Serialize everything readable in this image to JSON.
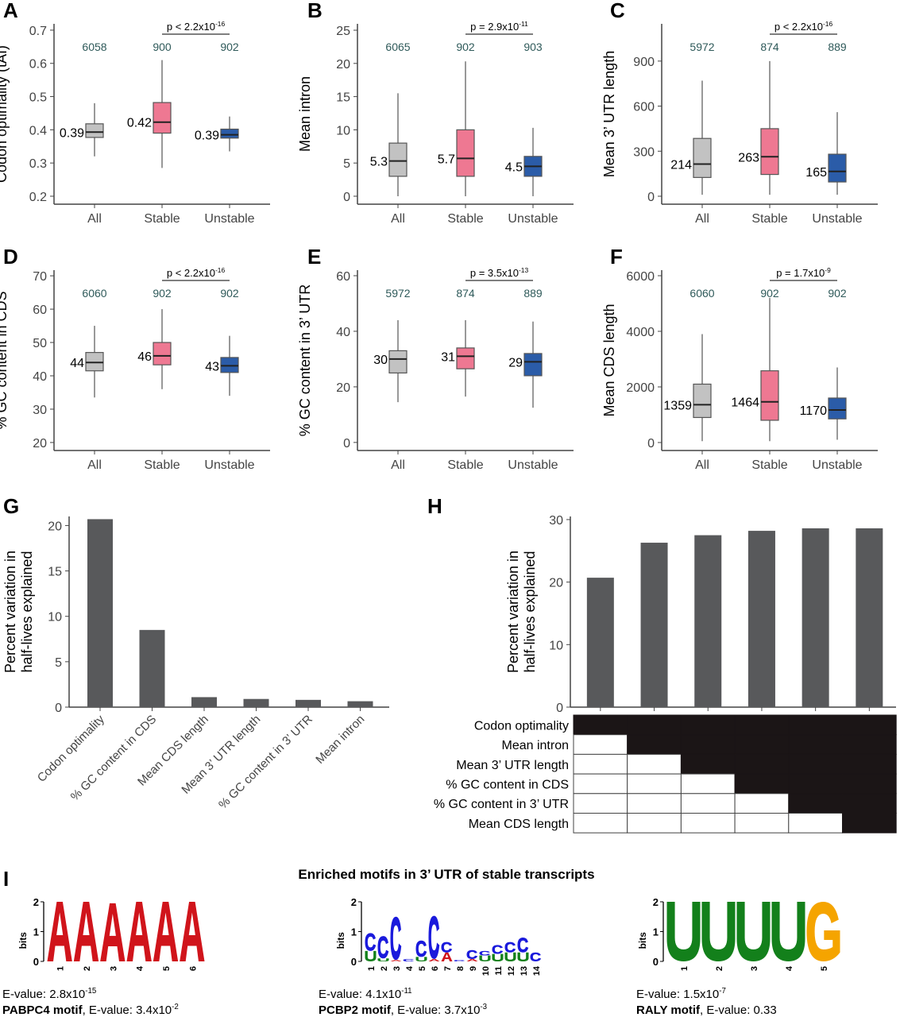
{
  "colors": {
    "all": "#c2c2c2",
    "stable": "#ee7892",
    "unstable": "#2b5ca8",
    "bar": "#58595b",
    "n_label": "#2f5a5a",
    "logo_A": "#d0141b",
    "logo_C": "#1a1adc",
    "logo_G": "#f5a400",
    "logo_U": "#13801b"
  },
  "chart_data": [
    {
      "id": "A",
      "type": "box",
      "ylabel": "Codon optimality (tAI)",
      "categories": [
        "All",
        "Stable",
        "Unstable"
      ],
      "ylim": [
        0.176,
        0.719
      ],
      "ticks": [
        0.2,
        0.3,
        0.4,
        0.5,
        0.6,
        0.7
      ],
      "n": [
        "6058",
        "900",
        "902"
      ],
      "pvalue": {
        "base": "p < 2.2x10",
        "exp": "-16"
      },
      "median_labels": [
        "0.39",
        "0.42",
        "0.39"
      ],
      "boxes": [
        {
          "lo": 0.32,
          "q1": 0.377,
          "med": 0.393,
          "q3": 0.418,
          "hi": 0.48
        },
        {
          "lo": 0.285,
          "q1": 0.39,
          "med": 0.423,
          "q3": 0.482,
          "hi": 0.61
        },
        {
          "lo": 0.335,
          "q1": 0.375,
          "med": 0.385,
          "q3": 0.402,
          "hi": 0.44
        }
      ]
    },
    {
      "id": "B",
      "type": "box",
      "ylabel": "Mean intron",
      "categories": [
        "All",
        "Stable",
        "Unstable"
      ],
      "ylim": [
        -1.2,
        25.96
      ],
      "ticks": [
        0,
        5,
        10,
        15,
        20,
        25
      ],
      "n": [
        "6065",
        "902",
        "903"
      ],
      "pvalue": {
        "base": "p = 2.9x10",
        "exp": "-11"
      },
      "median_labels": [
        "5.3",
        "5.7",
        "4.5"
      ],
      "boxes": [
        {
          "lo": 0,
          "q1": 3,
          "med": 5.3,
          "q3": 8,
          "hi": 15.5
        },
        {
          "lo": 0,
          "q1": 3,
          "med": 5.7,
          "q3": 10,
          "hi": 20.3
        },
        {
          "lo": 0,
          "q1": 3,
          "med": 4.5,
          "q3": 6,
          "hi": 10.3
        }
      ]
    },
    {
      "id": "C",
      "type": "box",
      "ylabel": "Mean 3’ UTR length",
      "categories": [
        "All",
        "Stable",
        "Unstable"
      ],
      "ylim": [
        -53,
        1148
      ],
      "ticks": [
        0,
        300,
        600,
        900
      ],
      "n": [
        "5972",
        "874",
        "889"
      ],
      "pvalue": {
        "base": "p < 2.2x10",
        "exp": "-16"
      },
      "median_labels": [
        "214",
        "263",
        "165"
      ],
      "boxes": [
        {
          "lo": 10,
          "q1": 125,
          "med": 214,
          "q3": 385,
          "hi": 770
        },
        {
          "lo": 10,
          "q1": 145,
          "med": 263,
          "q3": 450,
          "hi": 900
        },
        {
          "lo": 10,
          "q1": 95,
          "med": 165,
          "q3": 280,
          "hi": 560
        }
      ]
    },
    {
      "id": "D",
      "type": "box",
      "ylabel": "% GC content in CDS",
      "categories": [
        "All",
        "Stable",
        "Unstable"
      ],
      "ylim": [
        17.6,
        71.7
      ],
      "ticks": [
        20,
        30,
        40,
        50,
        60,
        70
      ],
      "n": [
        "6060",
        "902",
        "902"
      ],
      "pvalue": {
        "base": "p < 2.2x10",
        "exp": "-16"
      },
      "median_labels": [
        "44",
        "46",
        "43"
      ],
      "boxes": [
        {
          "lo": 33.5,
          "q1": 41.5,
          "med": 44,
          "q3": 47,
          "hi": 55
        },
        {
          "lo": 36,
          "q1": 43.3,
          "med": 46,
          "q3": 50,
          "hi": 60
        },
        {
          "lo": 34,
          "q1": 41,
          "med": 43,
          "q3": 45.5,
          "hi": 52
        }
      ]
    },
    {
      "id": "E",
      "type": "box",
      "ylabel": "% GC content in 3’ UTR",
      "categories": [
        "All",
        "Stable",
        "Unstable"
      ],
      "ylim": [
        -2.9,
        62
      ],
      "ticks": [
        0,
        20,
        40,
        60
      ],
      "n": [
        "5972",
        "874",
        "889"
      ],
      "pvalue": {
        "base": "p = 3.5x10",
        "exp": "-13"
      },
      "median_labels": [
        "30",
        "31",
        "29"
      ],
      "boxes": [
        {
          "lo": 14.5,
          "q1": 25,
          "med": 30,
          "q3": 33,
          "hi": 44
        },
        {
          "lo": 16.5,
          "q1": 26.5,
          "med": 31,
          "q3": 34,
          "hi": 44
        },
        {
          "lo": 12.5,
          "q1": 24,
          "med": 29,
          "q3": 32,
          "hi": 43.5
        }
      ]
    },
    {
      "id": "F",
      "type": "box",
      "ylabel": "Mean CDS length",
      "categories": [
        "All",
        "Stable",
        "Unstable"
      ],
      "ylim": [
        -287,
        6200
      ],
      "ticks": [
        0,
        2000,
        4000,
        6000
      ],
      "n": [
        "6060",
        "902",
        "902"
      ],
      "pvalue": {
        "base": "p = 1.7x10",
        "exp": "-9"
      },
      "median_labels": [
        "1359",
        "1464",
        "1170"
      ],
      "boxes": [
        {
          "lo": 50,
          "q1": 900,
          "med": 1359,
          "q3": 2100,
          "hi": 3900
        },
        {
          "lo": 50,
          "q1": 800,
          "med": 1464,
          "q3": 2580,
          "hi": 5200
        },
        {
          "lo": 100,
          "q1": 850,
          "med": 1170,
          "q3": 1600,
          "hi": 2700
        }
      ]
    },
    {
      "id": "G",
      "type": "bar",
      "ylabel": [
        "Percent variation in",
        "half-lives explained"
      ],
      "ylim": [
        0,
        21
      ],
      "ticks": [
        0,
        5,
        10,
        15,
        20
      ],
      "categories": [
        "Codon optimality",
        "% GC content in CDS",
        "Mean CDS length",
        "Mean 3’ UTR length",
        "% GC content in 3’ UTR",
        "Mean intron"
      ],
      "values": [
        20.7,
        8.5,
        1.1,
        0.9,
        0.8,
        0.65
      ]
    },
    {
      "id": "H",
      "type": "bar",
      "ylabel": [
        "Percent variation in",
        "half-lives explained"
      ],
      "ylim": [
        0,
        30
      ],
      "ticks": [
        0,
        10,
        20,
        30
      ],
      "values": [
        20.7,
        26.3,
        27.5,
        28.2,
        28.6,
        28.6
      ],
      "matrix_rows": [
        "Codon optimality",
        "Mean intron",
        "Mean 3’ UTR length",
        "% GC content in CDS",
        "% GC content in 3’ UTR",
        "Mean CDS length"
      ],
      "matrix": [
        [
          1,
          1,
          1,
          1,
          1,
          1
        ],
        [
          0,
          1,
          1,
          1,
          1,
          1
        ],
        [
          0,
          0,
          1,
          1,
          1,
          1
        ],
        [
          0,
          0,
          0,
          1,
          1,
          1
        ],
        [
          0,
          0,
          0,
          0,
          1,
          1
        ],
        [
          0,
          0,
          0,
          0,
          0,
          1
        ]
      ]
    }
  ],
  "panel_I": {
    "title": "Enriched motifs in 3’ UTR of stable transcripts",
    "y_axis_label": "bits",
    "y_ticks": [
      "0",
      "1",
      "2"
    ],
    "logos": [
      {
        "positions": [
          [
            [
              "A",
              2
            ]
          ],
          [
            [
              "A",
              2
            ]
          ],
          [
            [
              "A",
              1.95
            ]
          ],
          [
            [
              "A",
              2
            ]
          ],
          [
            [
              "A",
              2
            ]
          ],
          [
            [
              "A",
              2
            ]
          ]
        ],
        "evalue": {
          "base": "E-value: 2.8x10",
          "exp": "-15"
        },
        "motif": "PABPC4 motif",
        "motif_evalue": {
          "base": ", E-value: 3.4x10",
          "exp": "-2"
        }
      },
      {
        "positions": [
          [
            [
              "U",
              0.35
            ],
            [
              "C",
              0.6
            ]
          ],
          [
            [
              "U",
              0.1
            ],
            [
              "C",
              0.75
            ]
          ],
          [
            [
              "A",
              0.05
            ],
            [
              "C",
              1.45
            ]
          ],
          [
            [
              "C",
              0.08
            ]
          ],
          [
            [
              "U",
              0.15
            ],
            [
              "C",
              0.55
            ]
          ],
          [
            [
              "A",
              0.08
            ],
            [
              "C",
              1.45
            ]
          ],
          [
            [
              "A",
              0.3
            ],
            [
              "C",
              0.35
            ]
          ],
          [
            [
              "C",
              0.05
            ]
          ],
          [
            [
              "A",
              0.08
            ],
            [
              "C",
              0.3
            ]
          ],
          [
            [
              "U",
              0.2
            ],
            [
              "C",
              0.15
            ]
          ],
          [
            [
              "U",
              0.25
            ],
            [
              "C",
              0.3
            ]
          ],
          [
            [
              "U",
              0.3
            ],
            [
              "C",
              0.35
            ]
          ],
          [
            [
              "U",
              0.3
            ],
            [
              "C",
              0.5
            ]
          ],
          [
            [
              "C",
              0.3
            ]
          ]
        ],
        "evalue": {
          "base": "E-value: 4.1x10",
          "exp": "-11"
        },
        "motif": "PCBP2 motif",
        "motif_evalue": {
          "base": ", E-value: 3.7x10",
          "exp": "-3"
        }
      },
      {
        "positions": [
          [
            [
              "U",
              2
            ]
          ],
          [
            [
              "U",
              2
            ]
          ],
          [
            [
              "U",
              2
            ]
          ],
          [
            [
              "U",
              2
            ]
          ],
          [
            [
              "G",
              2
            ]
          ]
        ],
        "evalue": {
          "base": "E-value: 1.5x10",
          "exp": "-7"
        },
        "motif": "RALY motif",
        "motif_evalue": {
          "base": ", E-value: 0.33",
          "exp": ""
        }
      }
    ]
  }
}
